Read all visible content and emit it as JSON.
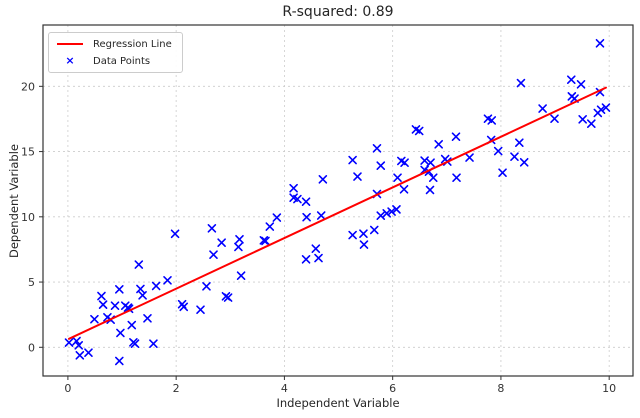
{
  "title": "R-squared: 0.89",
  "legend": {
    "regression_label": "Regression Line",
    "points_label": "Data Points"
  },
  "colors": {
    "marker": "#0000ff",
    "line": "#ff0000",
    "grid": "#cccccc",
    "spine": "#333333",
    "text": "#262626"
  },
  "chart_data": {
    "type": "scatter",
    "title": "R-squared: 0.89",
    "xlabel": "Independent Variable",
    "ylabel": "Dependent Variable",
    "xlim": [
      -0.46,
      10.44
    ],
    "ylim": [
      -2.2,
      24.7
    ],
    "xticks": [
      0,
      2,
      4,
      6,
      8,
      10
    ],
    "yticks": [
      0,
      5,
      10,
      15,
      20
    ],
    "grid": true,
    "legend_position": "upper left",
    "marker": {
      "shape": "x",
      "color": "#0000ff",
      "size": 3.5,
      "stroke_width": 1.6
    },
    "regression_line": {
      "x": [
        0.02,
        9.94
      ],
      "y": [
        0.65,
        19.9
      ],
      "color": "#ff0000",
      "width": 2
    },
    "points": [
      [
        0.02,
        0.36
      ],
      [
        0.16,
        0.48
      ],
      [
        0.2,
        0.15
      ],
      [
        0.22,
        -0.61
      ],
      [
        0.38,
        -0.41
      ],
      [
        0.49,
        2.15
      ],
      [
        0.62,
        3.93
      ],
      [
        0.65,
        3.27
      ],
      [
        0.73,
        2.3
      ],
      [
        0.79,
        2.12
      ],
      [
        0.87,
        3.19
      ],
      [
        0.95,
        4.44
      ],
      [
        0.95,
        -1.05
      ],
      [
        0.97,
        1.1
      ],
      [
        1.06,
        3.19
      ],
      [
        1.11,
        3.04
      ],
      [
        1.13,
        2.95
      ],
      [
        1.18,
        1.7
      ],
      [
        1.21,
        0.38
      ],
      [
        1.24,
        0.28
      ],
      [
        1.31,
        6.34
      ],
      [
        1.34,
        4.47
      ],
      [
        1.38,
        3.98
      ],
      [
        1.47,
        2.22
      ],
      [
        1.58,
        0.28
      ],
      [
        1.63,
        4.7
      ],
      [
        1.84,
        5.13
      ],
      [
        1.98,
        8.7
      ],
      [
        2.11,
        3.3
      ],
      [
        2.14,
        3.1
      ],
      [
        2.45,
        2.88
      ],
      [
        2.56,
        4.67
      ],
      [
        2.66,
        9.12
      ],
      [
        2.69,
        7.1
      ],
      [
        2.84,
        8.02
      ],
      [
        2.92,
        3.91
      ],
      [
        2.96,
        3.81
      ],
      [
        3.15,
        7.69
      ],
      [
        3.17,
        8.28
      ],
      [
        3.2,
        5.49
      ],
      [
        3.62,
        8.2
      ],
      [
        3.65,
        8.15
      ],
      [
        3.73,
        9.25
      ],
      [
        3.86,
        9.94
      ],
      [
        4.17,
        12.19
      ],
      [
        4.17,
        11.47
      ],
      [
        4.24,
        11.36
      ],
      [
        4.4,
        11.16
      ],
      [
        4.4,
        6.74
      ],
      [
        4.41,
        9.97
      ],
      [
        4.58,
        7.56
      ],
      [
        4.63,
        6.84
      ],
      [
        4.68,
        10.1
      ],
      [
        4.71,
        12.87
      ],
      [
        5.26,
        8.6
      ],
      [
        5.26,
        14.35
      ],
      [
        5.35,
        13.08
      ],
      [
        5.46,
        8.71
      ],
      [
        5.47,
        7.87
      ],
      [
        5.66,
        8.99
      ],
      [
        5.71,
        15.25
      ],
      [
        5.71,
        11.75
      ],
      [
        5.78,
        13.92
      ],
      [
        5.78,
        10.09
      ],
      [
        5.89,
        10.27
      ],
      [
        5.98,
        10.4
      ],
      [
        6.07,
        10.57
      ],
      [
        6.09,
        13.0
      ],
      [
        6.16,
        14.28
      ],
      [
        6.22,
        14.15
      ],
      [
        6.21,
        12.11
      ],
      [
        6.43,
        16.7
      ],
      [
        6.49,
        16.58
      ],
      [
        6.59,
        14.31
      ],
      [
        6.59,
        13.59
      ],
      [
        6.67,
        13.46
      ],
      [
        6.7,
        14.15
      ],
      [
        6.69,
        12.06
      ],
      [
        6.75,
        13.0
      ],
      [
        6.85,
        15.56
      ],
      [
        6.97,
        14.43
      ],
      [
        7.01,
        14.23
      ],
      [
        7.17,
        16.14
      ],
      [
        7.18,
        13.0
      ],
      [
        7.42,
        14.54
      ],
      [
        7.76,
        17.52
      ],
      [
        7.83,
        17.39
      ],
      [
        7.82,
        15.89
      ],
      [
        7.95,
        15.04
      ],
      [
        8.03,
        13.38
      ],
      [
        8.25,
        14.61
      ],
      [
        8.34,
        15.68
      ],
      [
        8.37,
        20.25
      ],
      [
        8.43,
        14.18
      ],
      [
        8.77,
        18.3
      ],
      [
        8.99,
        17.52
      ],
      [
        9.3,
        20.51
      ],
      [
        9.31,
        19.23
      ],
      [
        9.36,
        19.06
      ],
      [
        9.48,
        20.15
      ],
      [
        9.51,
        17.47
      ],
      [
        9.67,
        17.14
      ],
      [
        9.79,
        17.96
      ],
      [
        9.85,
        18.21
      ],
      [
        9.94,
        18.37
      ],
      [
        9.83,
        19.56
      ],
      [
        9.83,
        23.3
      ]
    ]
  }
}
